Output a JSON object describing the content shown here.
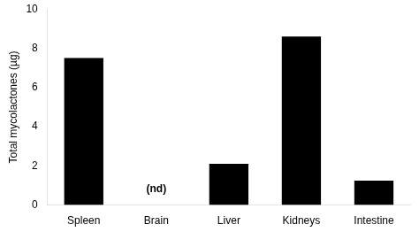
{
  "chart_data": {
    "type": "bar",
    "categories": [
      "Spleen",
      "Brain",
      "Liver",
      "Kidneys",
      "Intestine"
    ],
    "values": [
      7.5,
      0,
      2.1,
      8.6,
      1.25
    ],
    "color": "#000000",
    "ylabel": "Total mycolactones (µg)",
    "ylim": [
      0,
      10
    ],
    "yticks": [
      0,
      2,
      4,
      6,
      8,
      10
    ],
    "grid": false,
    "annotations": [
      {
        "text": "(nd)",
        "x": "Brain",
        "y": 0.55
      }
    ]
  }
}
